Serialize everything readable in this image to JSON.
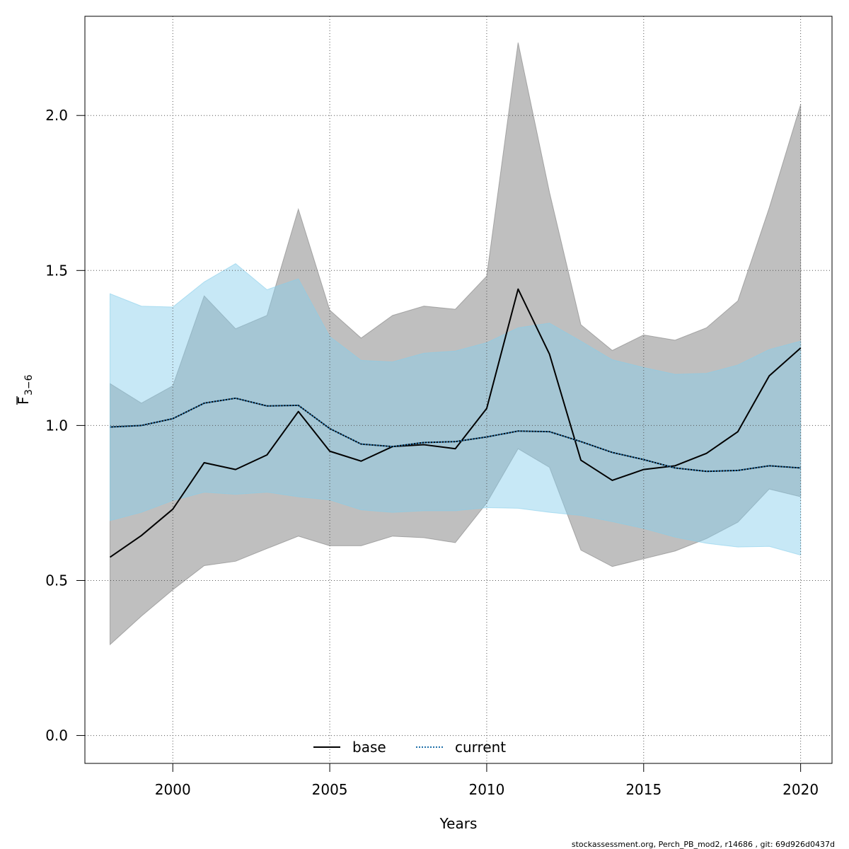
{
  "chart_data": {
    "type": "area",
    "xlabel": "Years",
    "ylabel_main": "F",
    "ylabel_sub": "3−6",
    "xlim": [
      1997.2,
      2021.0
    ],
    "ylim": [
      -0.09,
      2.32
    ],
    "xticks": [
      2000,
      2005,
      2010,
      2015,
      2020
    ],
    "yticks": [
      0.0,
      0.5,
      1.0,
      1.5,
      2.0
    ],
    "ytick_labels": [
      "0.0",
      "0.5",
      "1.0",
      "1.5",
      "2.0"
    ],
    "grid": true,
    "legend_position": "bottom-center",
    "x": [
      1998,
      1999,
      2000,
      2001,
      2002,
      2003,
      2004,
      2005,
      2006,
      2007,
      2008,
      2009,
      2010,
      2011,
      2012,
      2013,
      2014,
      2015,
      2016,
      2017,
      2018,
      2019,
      2020
    ],
    "series": [
      {
        "name": "base",
        "line_color": "#000000",
        "band_color": "#808080",
        "dash": "solid",
        "values": [
          0.575,
          0.645,
          0.73,
          0.88,
          0.858,
          0.905,
          1.045,
          0.917,
          0.885,
          0.932,
          0.938,
          0.925,
          1.055,
          1.44,
          1.23,
          0.888,
          0.823,
          0.858,
          0.87,
          0.91,
          0.98,
          1.16,
          1.25
        ],
        "lower": [
          0.293,
          0.385,
          0.47,
          0.548,
          0.562,
          0.603,
          0.643,
          0.612,
          0.612,
          0.643,
          0.638,
          0.622,
          0.75,
          0.925,
          0.865,
          0.598,
          0.545,
          0.57,
          0.595,
          0.635,
          0.688,
          0.795,
          0.77
        ],
        "upper": [
          1.135,
          1.072,
          1.128,
          1.418,
          1.312,
          1.355,
          1.698,
          1.372,
          1.282,
          1.355,
          1.385,
          1.375,
          1.482,
          2.235,
          1.752,
          1.325,
          1.242,
          1.292,
          1.275,
          1.315,
          1.402,
          1.702,
          2.035
        ]
      },
      {
        "name": "current",
        "line_color": "#1f6fa8",
        "band_color": "#87ceeb",
        "dash": "dotted",
        "values": [
          0.995,
          1.0,
          1.022,
          1.072,
          1.088,
          1.063,
          1.065,
          0.99,
          0.94,
          0.932,
          0.945,
          0.948,
          0.963,
          0.982,
          0.98,
          0.948,
          0.913,
          0.89,
          0.863,
          0.852,
          0.855,
          0.87,
          0.863
        ],
        "lower": [
          0.693,
          0.72,
          0.758,
          0.785,
          0.778,
          0.785,
          0.77,
          0.76,
          0.728,
          0.72,
          0.725,
          0.725,
          0.735,
          0.733,
          0.72,
          0.71,
          0.69,
          0.668,
          0.64,
          0.62,
          0.608,
          0.61,
          0.582
        ],
        "upper": [
          1.425,
          1.385,
          1.382,
          1.463,
          1.522,
          1.438,
          1.473,
          1.287,
          1.21,
          1.205,
          1.233,
          1.24,
          1.267,
          1.315,
          1.33,
          1.272,
          1.212,
          1.187,
          1.165,
          1.168,
          1.195,
          1.245,
          1.272
        ]
      }
    ]
  },
  "footer": "stockassessment.org, Perch_PB_mod2, r14686 , git: 69d926d0437d"
}
